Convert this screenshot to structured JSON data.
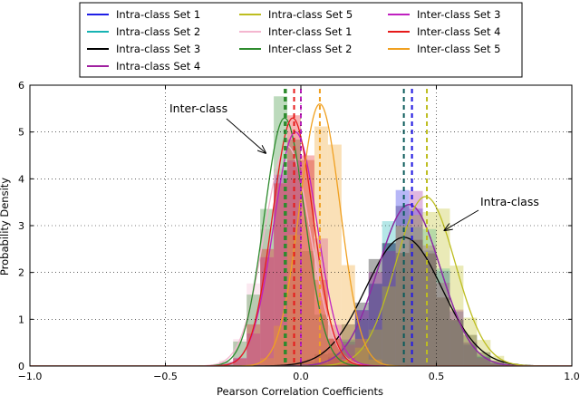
{
  "chart_data": {
    "type": "histogram-density",
    "xlabel": "Pearson Correlation Coefficients",
    "ylabel": "Probability Density",
    "xlim": [
      -1.0,
      1.0
    ],
    "ylim": [
      0,
      6
    ],
    "x_ticks": [
      -1.0,
      -0.5,
      0.0,
      0.5,
      1.0
    ],
    "y_ticks": [
      0,
      1,
      2,
      3,
      4,
      5,
      6
    ],
    "x_tick_labels": [
      "−1.0",
      "−0.5",
      "0.0",
      "0.5",
      "1.0"
    ],
    "y_tick_labels": [
      "0",
      "1",
      "2",
      "3",
      "4",
      "5",
      "6"
    ],
    "grid": true,
    "legend_position": "top-center",
    "bin_width": 0.05,
    "annotations": [
      {
        "text": "Inter-class",
        "target_x": -0.13,
        "target_y": 4.55
      },
      {
        "text": "Intra-class",
        "target_x": 0.53,
        "target_y": 2.9
      }
    ],
    "series": [
      {
        "name": "Intra-class Set 1",
        "color": "#1f1fe6",
        "mean": 0.4,
        "std": 0.115,
        "peak": 3.45,
        "mean_line": false
      },
      {
        "name": "Intra-class Set 2",
        "color": "#17b3b3",
        "mean": 0.4,
        "std": 0.115,
        "peak": 3.45,
        "mean_line": false
      },
      {
        "name": "Intra-class Set 3",
        "color": "#000000",
        "mean": 0.38,
        "std": 0.14,
        "peak": 2.75,
        "mean_line": false
      },
      {
        "name": "Intra-class Set 4",
        "color": "#a020a0",
        "mean": 0.4,
        "std": 0.115,
        "peak": 3.45,
        "mean_line": true,
        "mean_line_x": 0.41
      },
      {
        "name": "Intra-class Set 5",
        "color": "#bdbd1f",
        "mean": 0.46,
        "std": 0.11,
        "peak": 3.62,
        "mean_line": true,
        "mean_line_x": 0.465
      },
      {
        "name": "Inter-class Set 1",
        "color": "#f4b6cf",
        "mean": -0.05,
        "std": 0.085,
        "peak": 4.7,
        "mean_line": false
      },
      {
        "name": "Inter-class Set 2",
        "color": "#2e8b2e",
        "mean": -0.06,
        "std": 0.075,
        "peak": 5.3,
        "mean_line": true,
        "mean_line_x": -0.055
      },
      {
        "name": "Inter-class Set 3",
        "color": "#c020c0",
        "mean": -0.02,
        "std": 0.08,
        "peak": 5.0,
        "mean_line": true,
        "mean_line_x": 0.0
      },
      {
        "name": "Inter-class Set 4",
        "color": "#e61a1a",
        "mean": -0.03,
        "std": 0.075,
        "peak": 5.3,
        "mean_line": true,
        "mean_line_x": -0.025
      },
      {
        "name": "Inter-class Set 5",
        "color": "#f0a020",
        "mean": 0.07,
        "std": 0.075,
        "peak": 5.6,
        "mean_line": true,
        "mean_line_x": 0.07
      }
    ],
    "extra_mean_lines": [
      {
        "x": 0.38,
        "color": "#0b5b5b"
      },
      {
        "x": 0.41,
        "color": "#1f1fe6"
      },
      {
        "x": -0.06,
        "color": "#2e8b2e"
      }
    ]
  }
}
